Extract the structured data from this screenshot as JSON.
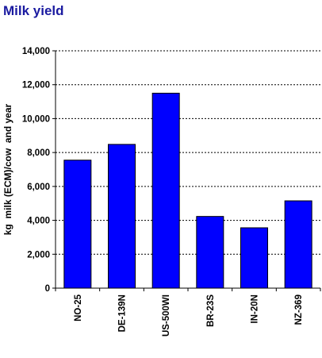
{
  "chart_data": {
    "type": "bar",
    "title": "Milk yield",
    "title_color": "#1a1aa0",
    "ylabel": "kg  milk (ECM)/cow  and year",
    "xlabel": "",
    "categories": [
      "NO-25",
      "DE-139N",
      "US-500WI",
      "BR-23S",
      "IN-20N",
      "NZ-369"
    ],
    "values": [
      7550,
      8480,
      11500,
      4230,
      3560,
      5150
    ],
    "ylim": [
      0,
      14000
    ],
    "ytick_step": 2000,
    "yticks": [
      "0",
      "2,000",
      "4,000",
      "6,000",
      "8,000",
      "10,000",
      "12,000",
      "14,000"
    ],
    "grid": "horizontal dashed",
    "legend": "none",
    "bar_color": "#0000ff",
    "bar_edge_color": "#000000"
  }
}
